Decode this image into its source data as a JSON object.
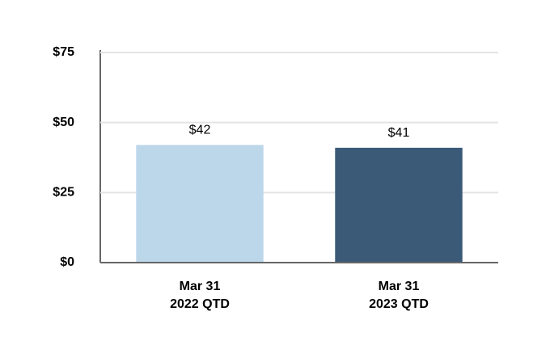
{
  "chart_data": {
    "type": "bar",
    "categories": [
      [
        "Mar 31",
        "2022 QTD"
      ],
      [
        "Mar 31",
        "2023 QTD"
      ]
    ],
    "values": [
      42,
      41
    ],
    "value_labels": [
      "$42",
      "$41"
    ],
    "colors": [
      "#bdd7ea",
      "#3b5a78"
    ],
    "ylim": [
      0,
      75
    ],
    "yticks": [
      {
        "value": 0,
        "label": "$0"
      },
      {
        "value": 25,
        "label": "$25"
      },
      {
        "value": 50,
        "label": "$50"
      },
      {
        "value": 75,
        "label": "$75"
      }
    ],
    "grid": true
  }
}
